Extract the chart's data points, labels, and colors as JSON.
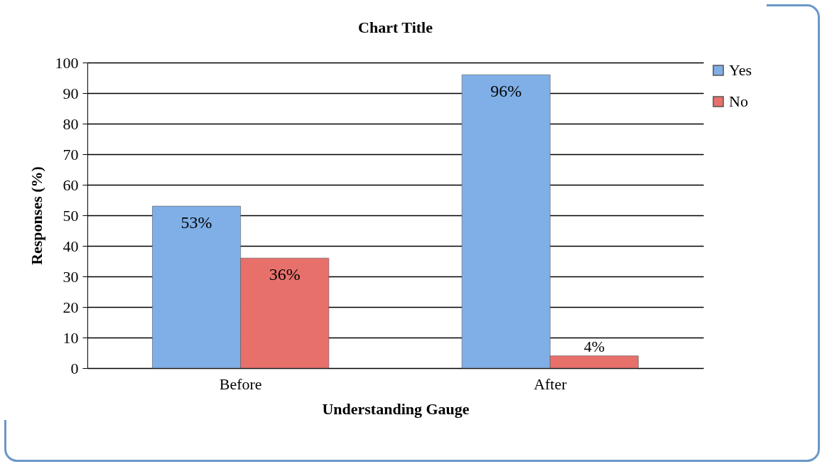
{
  "chart_data": {
    "type": "bar",
    "title": "Chart Title",
    "xlabel": "Understanding Gauge",
    "ylabel": "Responses (%)",
    "categories": [
      "Before",
      "After"
    ],
    "series": [
      {
        "name": "Yes",
        "color": "#7fafe6",
        "values": [
          53,
          96
        ],
        "value_labels": [
          "53%",
          "96%"
        ]
      },
      {
        "name": "No",
        "color": "#e8706b",
        "values": [
          36,
          4
        ],
        "value_labels": [
          "36%",
          "4%"
        ]
      }
    ],
    "ylim": [
      0,
      100
    ],
    "yticks": [
      0,
      10,
      20,
      30,
      40,
      50,
      60,
      70,
      80,
      90,
      100
    ],
    "grid": "y",
    "legend": "right"
  }
}
